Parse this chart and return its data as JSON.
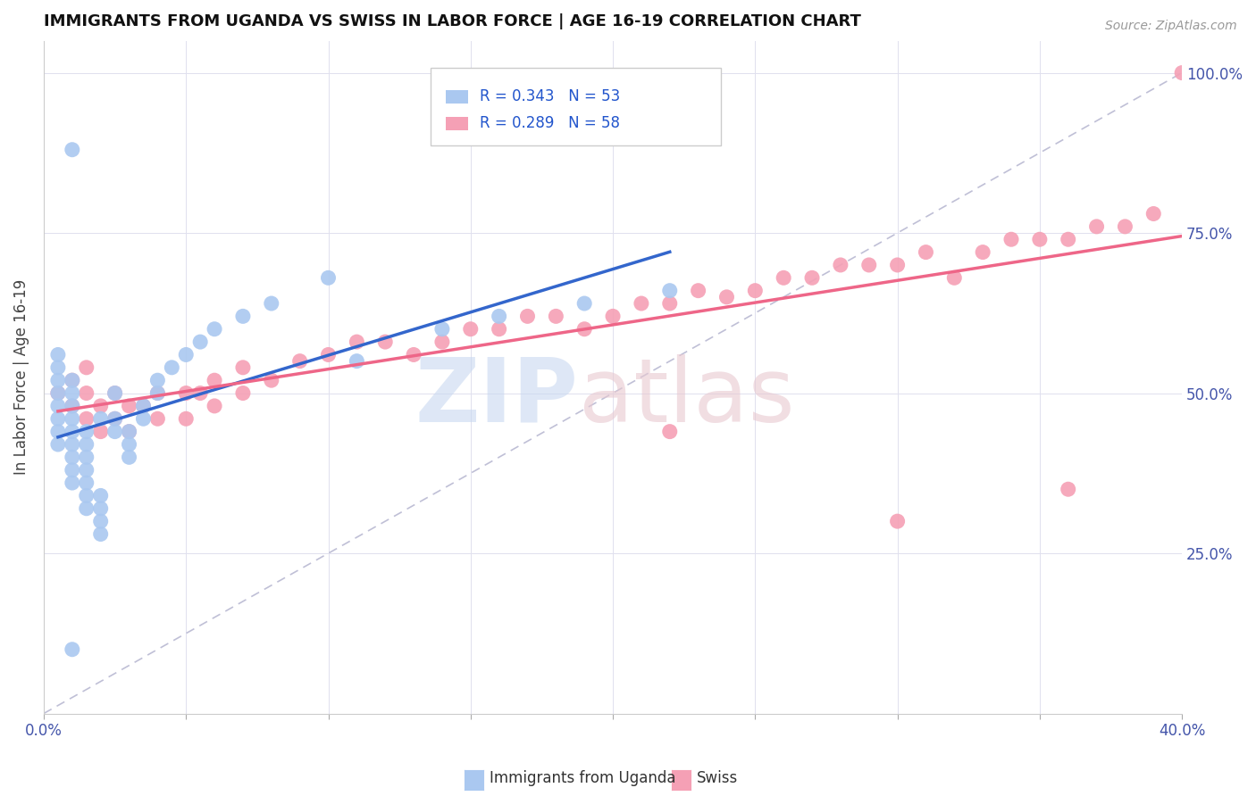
{
  "title": "IMMIGRANTS FROM UGANDA VS SWISS IN LABOR FORCE | AGE 16-19 CORRELATION CHART",
  "source": "Source: ZipAtlas.com",
  "ylabel": "In Labor Force | Age 16-19",
  "xlim": [
    0.0,
    0.4
  ],
  "ylim": [
    0.0,
    1.05
  ],
  "x_ticks": [
    0.0,
    0.05,
    0.1,
    0.15,
    0.2,
    0.25,
    0.3,
    0.35,
    0.4
  ],
  "x_tick_labels": [
    "0.0%",
    "",
    "",
    "",
    "",
    "",
    "",
    "",
    "40.0%"
  ],
  "y_ticks": [
    0.0,
    0.25,
    0.5,
    0.75,
    1.0
  ],
  "y_tick_labels": [
    "",
    "25.0%",
    "50.0%",
    "75.0%",
    "100.0%"
  ],
  "uganda_color": "#aac8f0",
  "swiss_color": "#f5a0b5",
  "uganda_line_color": "#3366cc",
  "swiss_line_color": "#ee6688",
  "diagonal_color": "#b0b0cc",
  "uganda_x": [
    0.005,
    0.005,
    0.005,
    0.005,
    0.005,
    0.005,
    0.005,
    0.005,
    0.01,
    0.01,
    0.01,
    0.01,
    0.01,
    0.01,
    0.01,
    0.01,
    0.01,
    0.01,
    0.015,
    0.015,
    0.015,
    0.015,
    0.015,
    0.015,
    0.015,
    0.02,
    0.02,
    0.02,
    0.02,
    0.02,
    0.025,
    0.025,
    0.025,
    0.03,
    0.03,
    0.03,
    0.035,
    0.035,
    0.04,
    0.04,
    0.045,
    0.05,
    0.055,
    0.06,
    0.07,
    0.08,
    0.1,
    0.11,
    0.14,
    0.16,
    0.19,
    0.22,
    0.01
  ],
  "uganda_y": [
    0.42,
    0.44,
    0.46,
    0.48,
    0.5,
    0.52,
    0.54,
    0.56,
    0.36,
    0.38,
    0.4,
    0.42,
    0.44,
    0.46,
    0.48,
    0.5,
    0.52,
    0.88,
    0.32,
    0.34,
    0.36,
    0.38,
    0.4,
    0.42,
    0.44,
    0.28,
    0.3,
    0.32,
    0.34,
    0.46,
    0.44,
    0.46,
    0.5,
    0.4,
    0.42,
    0.44,
    0.46,
    0.48,
    0.5,
    0.52,
    0.54,
    0.56,
    0.58,
    0.6,
    0.62,
    0.64,
    0.68,
    0.55,
    0.6,
    0.62,
    0.64,
    0.66,
    0.1
  ],
  "swiss_x": [
    0.005,
    0.01,
    0.01,
    0.015,
    0.015,
    0.015,
    0.02,
    0.02,
    0.025,
    0.025,
    0.03,
    0.03,
    0.035,
    0.04,
    0.04,
    0.05,
    0.05,
    0.055,
    0.06,
    0.06,
    0.07,
    0.07,
    0.08,
    0.09,
    0.1,
    0.11,
    0.12,
    0.13,
    0.14,
    0.15,
    0.16,
    0.17,
    0.18,
    0.19,
    0.2,
    0.21,
    0.22,
    0.23,
    0.24,
    0.25,
    0.26,
    0.27,
    0.28,
    0.29,
    0.3,
    0.31,
    0.32,
    0.33,
    0.34,
    0.35,
    0.36,
    0.37,
    0.38,
    0.39,
    0.4,
    0.22,
    0.3,
    0.36
  ],
  "swiss_y": [
    0.5,
    0.48,
    0.52,
    0.46,
    0.5,
    0.54,
    0.44,
    0.48,
    0.46,
    0.5,
    0.44,
    0.48,
    0.48,
    0.46,
    0.5,
    0.46,
    0.5,
    0.5,
    0.48,
    0.52,
    0.5,
    0.54,
    0.52,
    0.55,
    0.56,
    0.58,
    0.58,
    0.56,
    0.58,
    0.6,
    0.6,
    0.62,
    0.62,
    0.6,
    0.62,
    0.64,
    0.64,
    0.66,
    0.65,
    0.66,
    0.68,
    0.68,
    0.7,
    0.7,
    0.7,
    0.72,
    0.68,
    0.72,
    0.74,
    0.74,
    0.74,
    0.76,
    0.76,
    0.78,
    1.0,
    0.44,
    0.3,
    0.35
  ]
}
